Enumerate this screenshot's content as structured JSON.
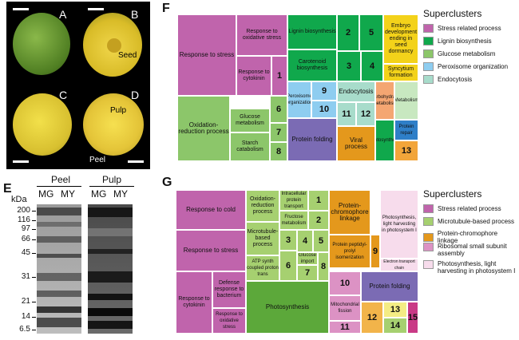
{
  "photos": {
    "A": "A",
    "B": "B",
    "C": "C",
    "D": "D",
    "seed_label": "Seed",
    "pulp_label": "Pulp",
    "peel_label": "Peel"
  },
  "gel": {
    "panel": "E",
    "group1": "Peel",
    "group2": "Pulp",
    "lanes": [
      "MG",
      "MY",
      "MG",
      "MY"
    ],
    "unit": "kDa",
    "markers": [
      "200",
      "116",
      "97",
      "66",
      "45",
      "31",
      "21",
      "14",
      "6.5"
    ]
  },
  "treemapF": {
    "panel": "F",
    "tiles": [
      "Response to stress",
      "Response to oxidative stress",
      "Response to cytokinin",
      "1",
      "Oxidation-reduction process",
      "Glucose metabolism",
      "6",
      "7",
      "Starch catabolism",
      "8",
      "Lignin biosynthesis",
      "2",
      "5",
      "Carotenoid biosynthesis",
      "3",
      "4",
      "Embryo development ending in seed dormancy",
      "Syncytium formation",
      "Peroxisome organization",
      "9",
      "10",
      "Protein folding",
      "Endocytosis",
      "11",
      "12",
      "Viral process",
      "Carbohydrate metabolism",
      "Photosynthesis",
      "Metabolism",
      "Protein repair",
      "13"
    ],
    "legend_title": "Superclusters",
    "legend": [
      "Stress related process",
      "Lignin biosynthesis",
      "Glucose metabolism",
      "Peroxisome organization",
      "Endocytosis"
    ],
    "colors": [
      "#c064ac",
      "#10a84c",
      "#8cc66a",
      "#8ecdf0",
      "#a8dccb"
    ]
  },
  "treemapG": {
    "panel": "G",
    "tiles": [
      "Response to cold",
      "Response to stress",
      "Response to cytokinin",
      "Defense response to bacterium",
      "Response to oxidative stress",
      "Oxidation-reduction process",
      "Intracellular protein transport",
      "1",
      "Fructose metabolism",
      "2",
      "Microtubule-based process",
      "3",
      "4",
      "5",
      "Glucose import",
      "ATP synth coupled proton trans",
      "6",
      "7",
      "8",
      "Photosynthesis",
      "Protein-chromophore linkage",
      "Protein peptidyl-prolyl isomerization",
      "9",
      "Photosynthesis, light harvesting in photosystem I",
      "Electron transport chain",
      "10",
      "Protein folding",
      "Mitochondrial fission",
      "11",
      "12",
      "13",
      "14",
      "15"
    ],
    "legend_title": "Superclusters",
    "legend": [
      "Stress related process",
      "Microtubule-based process",
      "Protein-chromophore linkage",
      "Ribosomal small subunit assembly",
      "Photosynthesis, light harvesting in photosystem I"
    ],
    "colors": [
      "#c064ac",
      "#a6d070",
      "#e4981c",
      "#dc92c4",
      "#f7dcec"
    ]
  }
}
